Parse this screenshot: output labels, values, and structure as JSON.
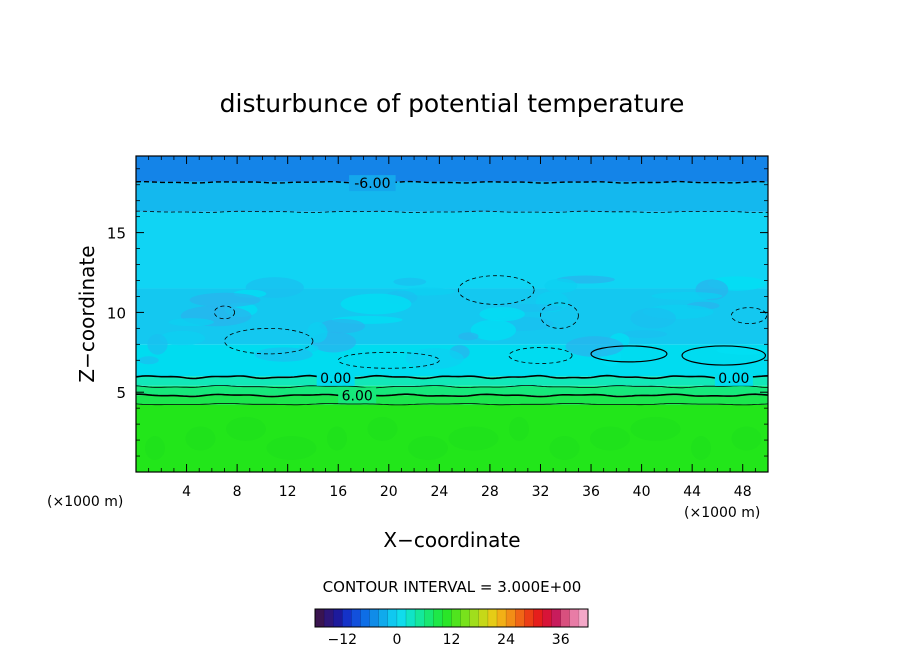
{
  "chart_data": {
    "type": "heatmap",
    "title": "disturbunce of potential temperature",
    "xlabel": "X−coordinate",
    "ylabel": "Z−coordinate",
    "x_unit_left": "(×1000 m)",
    "x_unit_right": "(×1000 m)",
    "xlim": [
      0,
      50
    ],
    "ylim": [
      0,
      19.8
    ],
    "xticks": [
      4,
      8,
      12,
      16,
      20,
      24,
      28,
      32,
      36,
      40,
      44,
      48
    ],
    "xtick_labels": [
      "4",
      "8",
      "12",
      "16",
      "20",
      "24",
      "28",
      "32",
      "36",
      "40",
      "44",
      "48"
    ],
    "yticks": [
      5,
      10,
      15
    ],
    "ytick_labels": [
      "5",
      "10",
      "15"
    ],
    "contour_interval_label": "CONTOUR INTERVAL = 3.000E+00",
    "contour_labels": [
      {
        "text": "-6.00",
        "x": 18.7,
        "z": 18.1
      },
      {
        "text": "0.00",
        "x": 15.8,
        "z": 5.9
      },
      {
        "text": "0.00",
        "x": 47.3,
        "z": 5.9
      },
      {
        "text": "6.00",
        "x": 17.5,
        "z": 4.8
      }
    ],
    "layers": [
      {
        "z_min": 0,
        "z_max": 4.2,
        "value": 9,
        "color": "#22e61a"
      },
      {
        "z_min": 4.2,
        "z_max": 4.8,
        "value": 7.5,
        "color": "#1ce64e"
      },
      {
        "z_min": 4.8,
        "z_max": 5.4,
        "value": 4.5,
        "color": "#16e87a"
      },
      {
        "z_min": 5.4,
        "z_max": 6.0,
        "value": 1.5,
        "color": "#12e8b8"
      },
      {
        "z_min": 6.0,
        "z_max": 8.0,
        "value": -1.5,
        "color": "#00dcf0"
      },
      {
        "z_min": 8.0,
        "z_max": 11.5,
        "value": -2.5,
        "color": "#14c8f0"
      },
      {
        "z_min": 11.5,
        "z_max": 16.3,
        "value": -3.5,
        "color": "#10d4f4"
      },
      {
        "z_min": 16.3,
        "z_max": 18.2,
        "value": -4.5,
        "color": "#14b8ee"
      },
      {
        "z_min": 18.2,
        "z_max": 19.8,
        "value": -7.5,
        "color": "#1484e8"
      }
    ],
    "colorbar": {
      "min": -18,
      "max": 42,
      "tick_values": [
        -12,
        0,
        12,
        24,
        36
      ],
      "tick_labels": [
        "−12",
        "0",
        "12",
        "24",
        "36"
      ],
      "colors": [
        "#3a1450",
        "#2e1678",
        "#1d1a9c",
        "#1432c8",
        "#1250dc",
        "#0e6ee6",
        "#108ce8",
        "#10aaec",
        "#10c8f0",
        "#10dcec",
        "#10e4c6",
        "#14e89c",
        "#18e872",
        "#1ee848",
        "#2ae628",
        "#50e41e",
        "#78e21c",
        "#a0de1c",
        "#c6d818",
        "#e6cc16",
        "#f2b016",
        "#f28e16",
        "#f06616",
        "#ec3e16",
        "#e61e1c",
        "#d81438",
        "#c81c5c",
        "#d8507e",
        "#e87ca6",
        "#f4a8c8"
      ]
    }
  }
}
